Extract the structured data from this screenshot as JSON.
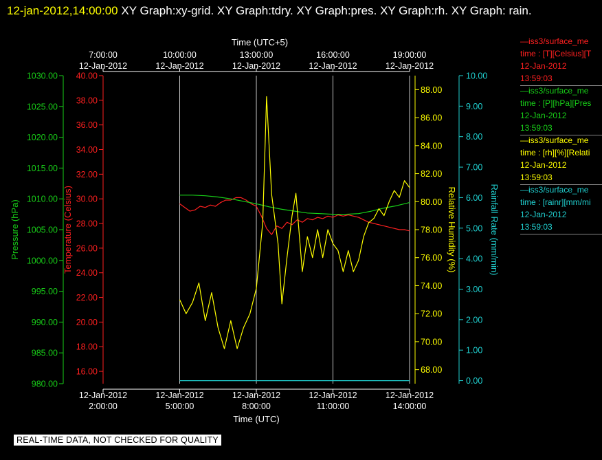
{
  "header": {
    "timestamp": "12-jan-2012,14:00:00",
    "graphs": "XY Graph:xy-grid.  XY Graph:tdry.  XY Graph:pres.  XY Graph:rh.  XY Graph: rain."
  },
  "banner": "REAL-TIME DATA, NOT CHECKED FOR QUALITY",
  "colors": {
    "temperature": "#ff2020",
    "pressure": "#18d018",
    "humidity": "#ffff00",
    "rain": "#20d0d0",
    "grid": "#c8c8c8",
    "header_timestamp": "#ffff00"
  },
  "legend": [
    {
      "series": "temperature",
      "lines": [
        "—iss3/surface_me",
        "time : [T][Celsius][T",
        "12-Jan-2012",
        "13:59:03"
      ]
    },
    {
      "series": "pressure",
      "lines": [
        "—iss3/surface_me",
        "time : [P][hPa][Pres",
        "12-Jan-2012",
        "13:59:03"
      ]
    },
    {
      "series": "humidity",
      "lines": [
        "—iss3/surface_me",
        "time : [rh][%][Relati",
        "12-Jan-2012",
        "13:59:03"
      ]
    },
    {
      "series": "rain",
      "lines": [
        "—iss3/surface_me",
        "time : [rainr][mm/mi",
        "12-Jan-2012",
        "13:59:03"
      ]
    }
  ],
  "chart_data": {
    "type": "line",
    "x_axis_bottom": {
      "title": "Time (UTC)",
      "ticks": [
        {
          "hour": 2,
          "date": "12-Jan-2012",
          "time": "2:00:00"
        },
        {
          "hour": 5,
          "date": "12-Jan-2012",
          "time": "5:00:00"
        },
        {
          "hour": 8,
          "date": "12-Jan-2012",
          "time": "8:00:00"
        },
        {
          "hour": 11,
          "date": "12-Jan-2012",
          "time": "11:00:00"
        },
        {
          "hour": 14,
          "date": "12-Jan-2012",
          "time": "14:00:00"
        }
      ],
      "range_hours_utc": [
        2,
        14
      ]
    },
    "x_axis_top": {
      "title": "Time (UTC+5)",
      "ticks": [
        {
          "date": "12-Jan-2012",
          "time": "7:00:00"
        },
        {
          "date": "12-Jan-2012",
          "time": "10:00:00"
        },
        {
          "date": "12-Jan-2012",
          "time": "13:00:00"
        },
        {
          "date": "12-Jan-2012",
          "time": "16:00:00"
        },
        {
          "date": "12-Jan-2012",
          "time": "19:00:00"
        }
      ]
    },
    "y_axes": {
      "pressure": {
        "label": "Pressure (hPa)",
        "range": [
          980,
          1030
        ],
        "ticks": [
          "980.00",
          "985.00",
          "990.00",
          "995.00",
          "1000.00",
          "1005.00",
          "1010.00",
          "1015.00",
          "1020.00",
          "1025.00",
          "1030.00"
        ]
      },
      "temperature": {
        "label": "Temperature (Celsius)",
        "range": [
          15,
          40
        ],
        "ticks": [
          "16.00",
          "18.00",
          "20.00",
          "22.00",
          "24.00",
          "26.00",
          "28.00",
          "30.00",
          "32.00",
          "34.00",
          "36.00",
          "38.00",
          "40.00"
        ]
      },
      "humidity": {
        "label": "Relative Humidity (%)",
        "range": [
          67,
          89
        ],
        "ticks": [
          "68.00",
          "70.00",
          "72.00",
          "74.00",
          "76.00",
          "78.00",
          "80.00",
          "82.00",
          "84.00",
          "86.00",
          "88.00"
        ]
      },
      "rain": {
        "label": "Rainfall Rate (mm/min)",
        "range": [
          -0.1,
          10
        ],
        "ticks": [
          "0.00",
          "1.00",
          "2.00",
          "3.00",
          "4.00",
          "5.00",
          "6.00",
          "7.00",
          "8.00",
          "9.00",
          "10.00"
        ]
      }
    },
    "grid_hours_utc": [
      5,
      8,
      11,
      14
    ],
    "series": [
      {
        "key": "temperature",
        "axis": "temperature",
        "points": [
          [
            5.0,
            29.6
          ],
          [
            5.2,
            29.3
          ],
          [
            5.4,
            29.0
          ],
          [
            5.6,
            29.1
          ],
          [
            5.8,
            29.4
          ],
          [
            6.0,
            29.3
          ],
          [
            6.2,
            29.5
          ],
          [
            6.4,
            29.4
          ],
          [
            6.6,
            29.7
          ],
          [
            6.8,
            29.9
          ],
          [
            7.0,
            29.9
          ],
          [
            7.2,
            30.1
          ],
          [
            7.4,
            30.1
          ],
          [
            7.6,
            29.9
          ],
          [
            7.8,
            29.6
          ],
          [
            8.0,
            29.4
          ],
          [
            8.2,
            28.6
          ],
          [
            8.4,
            27.6
          ],
          [
            8.6,
            27.1
          ],
          [
            8.8,
            27.8
          ],
          [
            9.0,
            27.6
          ],
          [
            9.2,
            28.1
          ],
          [
            9.4,
            27.9
          ],
          [
            9.6,
            28.3
          ],
          [
            9.8,
            28.1
          ],
          [
            10.0,
            28.4
          ],
          [
            10.2,
            28.3
          ],
          [
            10.4,
            28.5
          ],
          [
            10.6,
            28.4
          ],
          [
            10.8,
            28.6
          ],
          [
            11.0,
            28.5
          ],
          [
            11.2,
            28.7
          ],
          [
            11.4,
            28.6
          ],
          [
            11.6,
            28.7
          ],
          [
            11.8,
            28.6
          ],
          [
            12.0,
            28.5
          ],
          [
            12.2,
            28.3
          ],
          [
            12.4,
            28.1
          ],
          [
            12.6,
            28.0
          ],
          [
            12.8,
            27.9
          ],
          [
            13.0,
            27.8
          ],
          [
            13.2,
            27.7
          ],
          [
            13.4,
            27.6
          ],
          [
            13.6,
            27.5
          ],
          [
            13.8,
            27.5
          ],
          [
            14.0,
            27.4
          ]
        ]
      },
      {
        "key": "pressure",
        "axis": "pressure",
        "points": [
          [
            5.0,
            1010.6
          ],
          [
            5.5,
            1010.6
          ],
          [
            6.0,
            1010.5
          ],
          [
            6.5,
            1010.3
          ],
          [
            7.0,
            1010.0
          ],
          [
            7.5,
            1009.6
          ],
          [
            8.0,
            1009.2
          ],
          [
            8.5,
            1008.7
          ],
          [
            9.0,
            1008.3
          ],
          [
            9.5,
            1008.0
          ],
          [
            10.0,
            1007.7
          ],
          [
            10.5,
            1007.6
          ],
          [
            11.0,
            1007.5
          ],
          [
            11.5,
            1007.5
          ],
          [
            12.0,
            1007.6
          ],
          [
            12.5,
            1008.0
          ],
          [
            13.0,
            1008.5
          ],
          [
            13.5,
            1008.9
          ],
          [
            14.0,
            1009.4
          ]
        ]
      },
      {
        "key": "humidity",
        "axis": "humidity",
        "points": [
          [
            5.0,
            73.0
          ],
          [
            5.25,
            72.0
          ],
          [
            5.5,
            72.8
          ],
          [
            5.75,
            74.2
          ],
          [
            6.0,
            71.5
          ],
          [
            6.25,
            73.5
          ],
          [
            6.5,
            71.0
          ],
          [
            6.75,
            69.5
          ],
          [
            7.0,
            71.5
          ],
          [
            7.25,
            69.5
          ],
          [
            7.5,
            71.0
          ],
          [
            7.75,
            72.0
          ],
          [
            8.0,
            73.8
          ],
          [
            8.25,
            78.5
          ],
          [
            8.4,
            87.5
          ],
          [
            8.6,
            80.5
          ],
          [
            8.85,
            77.0
          ],
          [
            9.0,
            72.7
          ],
          [
            9.2,
            76.0
          ],
          [
            9.4,
            79.0
          ],
          [
            9.55,
            80.6
          ],
          [
            9.8,
            75.0
          ],
          [
            10.0,
            77.5
          ],
          [
            10.2,
            76.0
          ],
          [
            10.4,
            78.0
          ],
          [
            10.6,
            76.0
          ],
          [
            10.8,
            78.0
          ],
          [
            11.0,
            77.0
          ],
          [
            11.2,
            76.5
          ],
          [
            11.4,
            75.0
          ],
          [
            11.6,
            76.5
          ],
          [
            11.8,
            75.0
          ],
          [
            12.0,
            75.8
          ],
          [
            12.2,
            77.5
          ],
          [
            12.4,
            78.5
          ],
          [
            12.6,
            78.8
          ],
          [
            12.8,
            79.5
          ],
          [
            13.0,
            79.0
          ],
          [
            13.2,
            80.0
          ],
          [
            13.4,
            80.8
          ],
          [
            13.6,
            80.3
          ],
          [
            13.8,
            81.5
          ],
          [
            14.0,
            81.0
          ]
        ]
      },
      {
        "key": "rain",
        "axis": "rain",
        "points": [
          [
            5.0,
            0.0
          ],
          [
            14.0,
            0.0
          ]
        ]
      }
    ]
  }
}
